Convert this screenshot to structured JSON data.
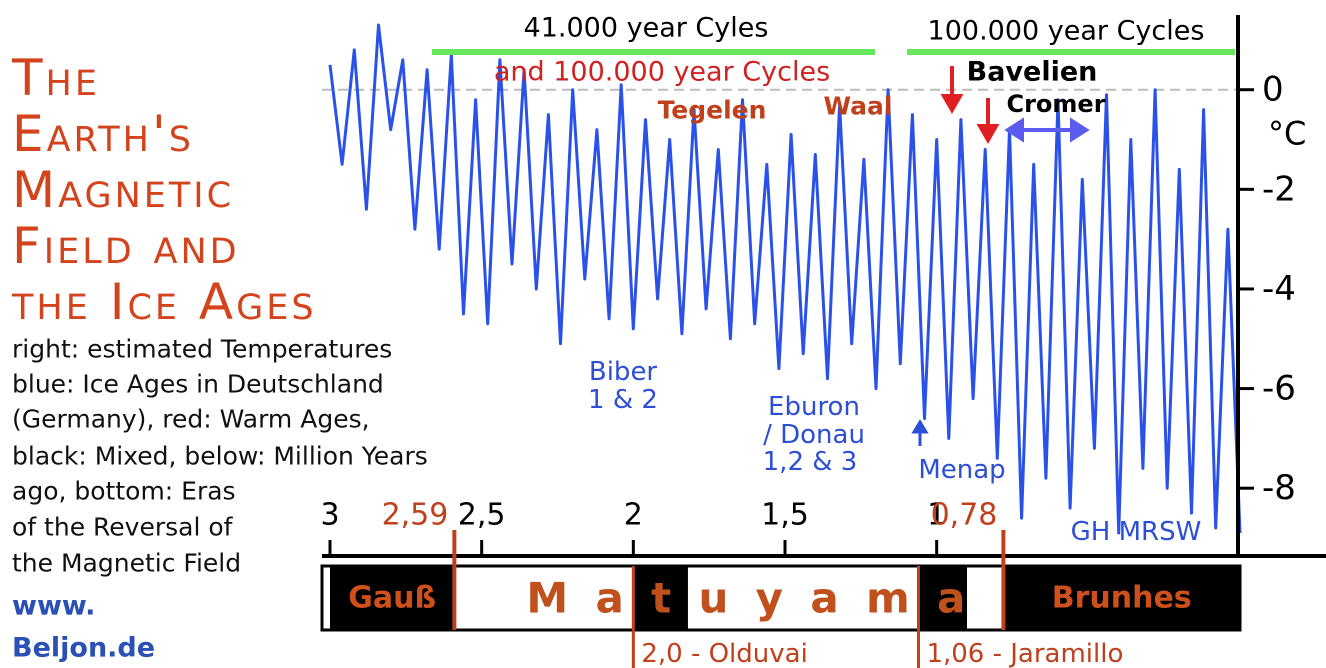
{
  "chart_data": {
    "type": "line",
    "title_lines": [
      "The",
      "Earth's",
      "Magnetic",
      "Field and",
      "the Ice Ages"
    ],
    "description_lines": [
      "right: estimated Temperatures",
      "blue: Ice Ages in Deutschland",
      "(Germany),  red: Warm Ages,",
      "black: Mixed, below: Million Years",
      "ago, bottom: Eras",
      "of the Reversal of",
      "the Magnetic Field"
    ],
    "source_lines": [
      "www.",
      "Beljon.de"
    ],
    "y_label": "°C",
    "annotations": [
      "41.000 year Cyles",
      "and 100.000 year Cycles",
      "100.000 year Cycles",
      "Tegelen",
      "Waal",
      "Bavelien",
      "Cromer",
      "Biber",
      "1 & 2",
      "Eburon",
      "/ Donau",
      "1,2 & 3",
      "Menap",
      "GH MRSW"
    ],
    "color": "#2b52e8",
    "x": [
      3.0,
      2.96,
      2.92,
      2.88,
      2.84,
      2.8,
      2.76,
      2.72,
      2.68,
      2.64,
      2.6,
      2.56,
      2.52,
      2.48,
      2.44,
      2.4,
      2.36,
      2.32,
      2.28,
      2.24,
      2.2,
      2.16,
      2.12,
      2.08,
      2.04,
      2.0,
      1.96,
      1.92,
      1.88,
      1.84,
      1.8,
      1.76,
      1.72,
      1.68,
      1.64,
      1.6,
      1.56,
      1.52,
      1.48,
      1.44,
      1.4,
      1.36,
      1.32,
      1.28,
      1.24,
      1.2,
      1.16,
      1.12,
      1.08,
      1.04,
      1.0,
      0.96,
      0.92,
      0.88,
      0.84,
      0.8,
      0.76,
      0.72,
      0.68,
      0.64,
      0.6,
      0.56,
      0.52,
      0.48,
      0.44,
      0.4,
      0.36,
      0.32,
      0.28,
      0.24,
      0.2,
      0.16,
      0.12,
      0.08,
      0.04,
      0.0
    ],
    "values": [
      0.5,
      -1.5,
      0.8,
      -2.4,
      1.3,
      -0.8,
      0.6,
      -2.8,
      0.4,
      -3.2,
      0.7,
      -4.5,
      -0.2,
      -4.7,
      0.6,
      -3.5,
      0.4,
      -4.0,
      -0.5,
      -5.1,
      0.0,
      -3.8,
      -0.8,
      -4.6,
      0.1,
      -4.8,
      -0.6,
      -4.2,
      -1.0,
      -4.9,
      -0.4,
      -4.4,
      -1.2,
      -5.0,
      -0.2,
      -4.7,
      -1.5,
      -5.6,
      -0.9,
      -5.3,
      -1.3,
      -5.8,
      -0.3,
      -5.1,
      -1.4,
      -6.0,
      0.0,
      -5.5,
      -0.5,
      -6.6,
      -1.0,
      -7.0,
      -0.6,
      -6.2,
      -1.2,
      -7.4,
      -0.8,
      -8.6,
      -1.5,
      -7.8,
      -0.2,
      -8.4,
      -1.8,
      -7.2,
      -0.1,
      -8.9,
      -1.0,
      -7.6,
      0.0,
      -8.0,
      -1.6,
      -8.5,
      -0.4,
      -8.8,
      -2.8,
      -8.9
    ],
    "xlim": [
      3,
      0
    ],
    "xticks": [
      3,
      {
        "value": 2.5,
        "label": "2,5"
      },
      2,
      {
        "value": 1.5,
        "label": "1,5"
      },
      1
    ],
    "ylim": [
      -9,
      1.5
    ],
    "yticks": [
      0,
      -2,
      -4,
      -6,
      -8
    ],
    "reversal_markers": [
      {
        "value": 2.59,
        "label": "2,59"
      },
      {
        "value": 0.78,
        "label": "0,78"
      }
    ],
    "events": [
      {
        "value": 2.0,
        "label": "2,0 - Olduvai"
      },
      {
        "value": 1.06,
        "label": "1,06 - Jaramillo"
      }
    ],
    "eras": [
      {
        "name": "Gauß",
        "start": 3,
        "end": 2.59
      },
      {
        "name": "Matuyama",
        "start": 2.59,
        "end": 0.78
      },
      {
        "name": "Brunhes",
        "start": 0.78,
        "end": 0
      }
    ],
    "black_blocks": [
      [
        3,
        2.59
      ],
      [
        2.0,
        1.82
      ],
      [
        1.06,
        0.9
      ],
      [
        0.78,
        0
      ]
    ]
  }
}
